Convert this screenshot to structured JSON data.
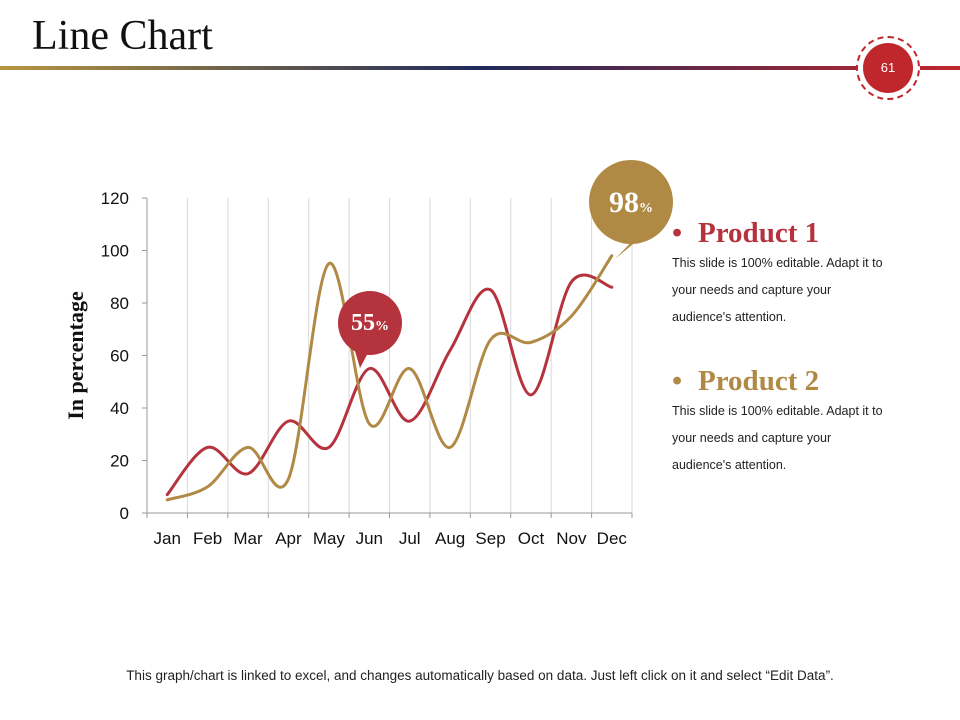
{
  "slide": {
    "title": "Line Chart",
    "page_number": "61",
    "footer": "This graph/chart is linked to excel, and changes automatically  based on data. Just left click on it and select “Edit Data”."
  },
  "colors": {
    "product1": "#b5333d",
    "product2": "#b08a45",
    "badge": "#c0272d",
    "rule_start": "#b8963f",
    "rule_mid": "#1f2a5a",
    "rule_end": "#c0272d",
    "grid": "#d9d9d9",
    "axis": "#999999",
    "text": "#111111"
  },
  "legend": [
    {
      "name": "Product 1",
      "description_lines": [
        "This slide is 100% editable. Adapt it to",
        "your needs and capture your",
        "audience's attention."
      ]
    },
    {
      "name": "Product 2",
      "description_lines": [
        "This slide is 100% editable. Adapt it to",
        "your needs and capture your",
        "audience's attention."
      ]
    }
  ],
  "callouts": [
    {
      "value": "55",
      "unit": "%",
      "series": "Product 1",
      "month": "Jun"
    },
    {
      "value": "98",
      "unit": "%",
      "series": "Product 2",
      "month": "Dec"
    }
  ],
  "chart_data": {
    "type": "line",
    "title": "",
    "xlabel": "",
    "ylabel": "In percentage",
    "categories": [
      "Jan",
      "Feb",
      "Mar",
      "Apr",
      "May",
      "Jun",
      "Jul",
      "Aug",
      "Sep",
      "Oct",
      "Nov",
      "Dec"
    ],
    "yticks": [
      0,
      20,
      40,
      60,
      80,
      100,
      120
    ],
    "ylim": [
      0,
      120
    ],
    "smooth": true,
    "grid": "vertical",
    "series": [
      {
        "name": "Product 1",
        "values": [
          7,
          25,
          15,
          35,
          25,
          55,
          35,
          62,
          85,
          45,
          88,
          86
        ]
      },
      {
        "name": "Product 2",
        "values": [
          5,
          10,
          25,
          13,
          95,
          34,
          55,
          25,
          66,
          65,
          75,
          98
        ]
      }
    ]
  }
}
